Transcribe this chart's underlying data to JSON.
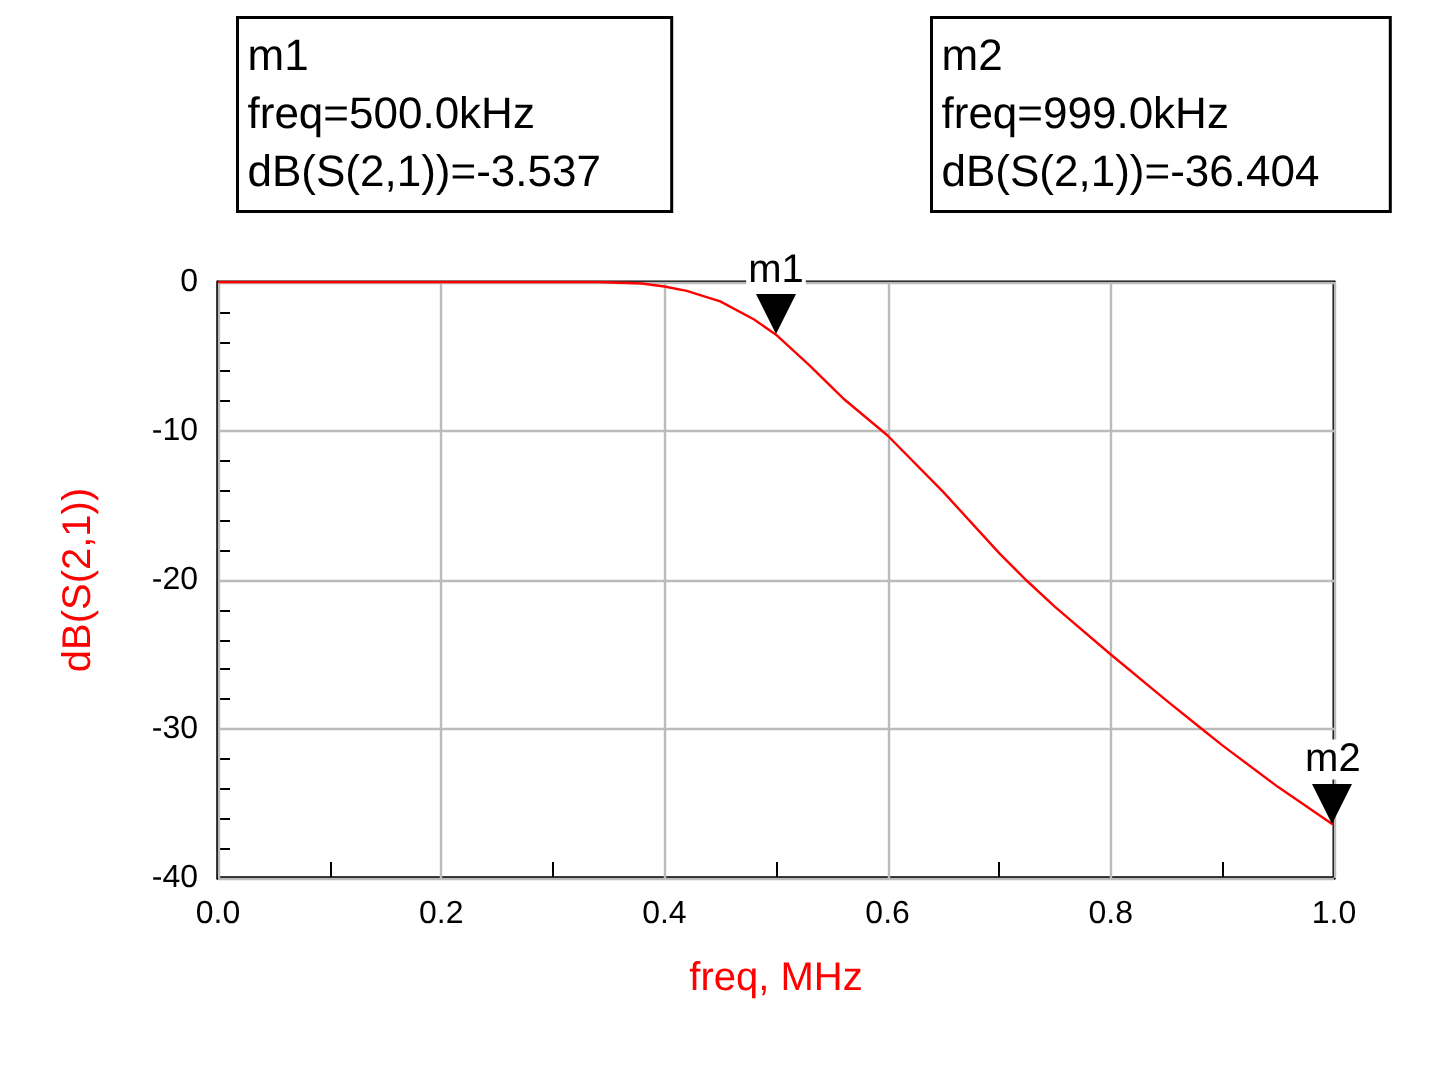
{
  "chart_data": {
    "type": "line",
    "xlabel": "freq, MHz",
    "ylabel": "dB(S(2,1))",
    "x": [
      0,
      0.1,
      0.2,
      0.3,
      0.34,
      0.38,
      0.4,
      0.42,
      0.45,
      0.48,
      0.5,
      0.53,
      0.56,
      0.6,
      0.65,
      0.7,
      0.724,
      0.75,
      0.8,
      0.85,
      0.885,
      0.9,
      0.95,
      0.999
    ],
    "series": [
      {
        "color": "#ff0000",
        "values": [
          0,
          0,
          0,
          0,
          0,
          -0.1,
          -0.3,
          -0.6,
          -1.3,
          -2.5,
          -3.537,
          -5.6,
          -7.8,
          -10.3,
          -14.1,
          -18.2,
          -20,
          -21.8,
          -25,
          -28.1,
          -30.2,
          -31.1,
          -33.9,
          -36.404
        ]
      }
    ],
    "xlim": [
      0,
      1
    ],
    "ylim": [
      -40,
      0
    ],
    "xticks": [
      {
        "value": 0,
        "label": "0.0"
      },
      {
        "value": 0.1,
        "label": null
      },
      0.2,
      {
        "value": 0.3,
        "label": null
      },
      0.4,
      {
        "value": 0.5,
        "label": null
      },
      0.6,
      {
        "value": 0.7,
        "label": null
      },
      0.8,
      {
        "value": 0.9,
        "label": null
      },
      {
        "value": 1,
        "label": "1.0"
      }
    ],
    "yticks": [
      -40,
      {
        "value": -38,
        "label": null
      },
      {
        "value": -36,
        "label": null
      },
      {
        "value": -34,
        "label": null
      },
      {
        "value": -32,
        "label": null
      },
      -30,
      {
        "value": -28,
        "label": null
      },
      {
        "value": -26,
        "label": null
      },
      {
        "value": -24,
        "label": null
      },
      {
        "value": -22,
        "label": null
      },
      -20,
      {
        "value": -18,
        "label": null
      },
      {
        "value": -16,
        "label": null
      },
      {
        "value": -14,
        "label": null
      },
      {
        "value": -12,
        "label": null
      },
      -10,
      {
        "value": -8,
        "label": null
      },
      {
        "value": -6,
        "label": null
      },
      {
        "value": -4,
        "label": null
      },
      {
        "value": -2,
        "label": null
      },
      0
    ],
    "grid": true,
    "marker": "none",
    "line_style": "solid",
    "annotations": [
      {
        "text": "m1",
        "x": 0.5,
        "y": -3.537
      },
      {
        "text": "m2",
        "x": 0.999,
        "y": -36.404
      },
      "m1\nfreq=500.0kHz\ndB(S(2,1))=-3.537",
      "m2\nfreq=999.0kHz\ndB(S(2,1))=-36.404"
    ]
  }
}
